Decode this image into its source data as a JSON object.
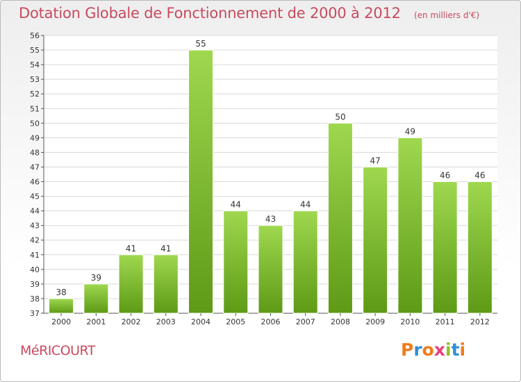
{
  "header": {
    "title": "Dotation Globale de Fonctionnement de 2000 à 2012",
    "subtitle": "(en milliers d'€)"
  },
  "footer": {
    "commune": "MéRICOURT",
    "logo_text": "Proxiti",
    "logo_colors": [
      "#f07c1c",
      "#2f8fd6",
      "#f07c1c",
      "#e83f7f",
      "#8fbf2a",
      "#2f8fd6",
      "#f07c1c"
    ]
  },
  "colors": {
    "bar_top": "#9fd84f",
    "bar_bottom": "#5e9a16",
    "grid": "#d8d8d8",
    "text": "#333333",
    "accent": "#c84a5e"
  },
  "chart_data": {
    "type": "bar",
    "categories": [
      "2000",
      "2001",
      "2002",
      "2003",
      "2004",
      "2005",
      "2006",
      "2007",
      "2008",
      "2009",
      "2010",
      "2011",
      "2012"
    ],
    "values": [
      38,
      39,
      41,
      41,
      55,
      44,
      43,
      44,
      50,
      47,
      49,
      46,
      46
    ],
    "title": "Dotation Globale de Fonctionnement de 2000 à 2012",
    "subtitle": "(en milliers d'€)",
    "ylim": [
      37,
      56
    ],
    "yticks": [
      37,
      38,
      39,
      40,
      41,
      42,
      43,
      44,
      45,
      46,
      47,
      48,
      49,
      50,
      51,
      52,
      53,
      54,
      55,
      56
    ],
    "grid": true,
    "data_labels": true
  }
}
